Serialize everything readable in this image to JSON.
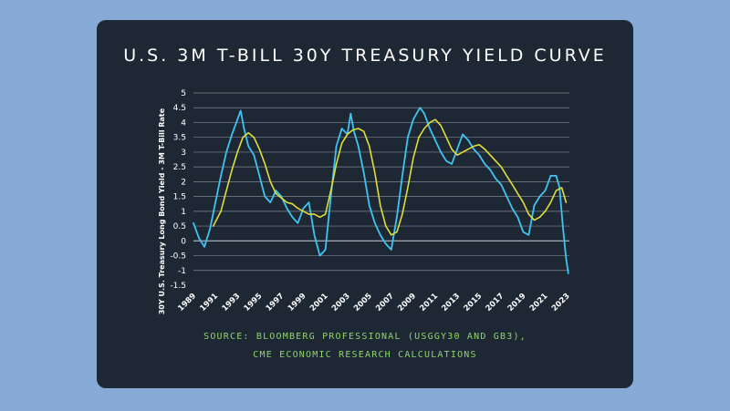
{
  "title": "U.S. 3M T-BILL 30Y TREASURY YIELD CURVE",
  "source_line1": "SOURCE: BLOOMBERG PROFESSIONAL (USGGY30 AND GB3),",
  "source_line2": "CME ECONOMIC RESEARCH CALCULATIONS",
  "chart_data": {
    "type": "line",
    "title": "U.S. 3M T-BILL 30Y TREASURY YIELD CURVE",
    "xlabel": "",
    "ylabel": "30Y U.S. Treasury Long Bond Yield - 3M T-Bill Rate",
    "xlim": [
      1989,
      2023.2
    ],
    "ylim": [
      -1.5,
      5
    ],
    "grid": true,
    "x_ticks": [
      "1989",
      "1991",
      "1993",
      "1995",
      "1997",
      "1999",
      "2001",
      "2003",
      "2005",
      "2007",
      "2009",
      "2011",
      "2013",
      "2015",
      "2017",
      "2019",
      "2021",
      "2023"
    ],
    "y_ticks": [
      "5",
      "4.5",
      "4",
      "3.5",
      "3",
      "2.5",
      "2",
      "1.5",
      "1",
      "0.5",
      "0",
      "-0.5",
      "-1",
      "-1.5"
    ],
    "colors": {
      "spread": "#3fc3f2",
      "moving_average": "#dede3a",
      "grid": "#d0d4da",
      "zero_line": "#c8ccd2"
    },
    "series": [
      {
        "name": "",
        "color": "#3fc3f2",
        "x": [
          1989.0,
          1989.5,
          1990.0,
          1990.5,
          1991.0,
          1991.5,
          1992.0,
          1992.5,
          1993.0,
          1993.3,
          1993.6,
          1994.0,
          1994.5,
          1995.0,
          1995.5,
          1996.0,
          1996.5,
          1997.0,
          1997.5,
          1998.0,
          1998.5,
          1999.0,
          1999.5,
          2000.0,
          2000.5,
          2001.0,
          2001.5,
          2002.0,
          2002.5,
          2003.0,
          2003.3,
          2003.6,
          2004.0,
          2004.5,
          2005.0,
          2005.5,
          2006.0,
          2006.5,
          2007.0,
          2007.5,
          2008.0,
          2008.5,
          2009.0,
          2009.3,
          2009.6,
          2010.0,
          2010.5,
          2011.0,
          2011.5,
          2012.0,
          2012.5,
          2013.0,
          2013.5,
          2014.0,
          2014.5,
          2015.0,
          2015.5,
          2016.0,
          2016.5,
          2017.0,
          2017.5,
          2018.0,
          2018.5,
          2019.0,
          2019.5,
          2020.0,
          2020.5,
          2021.0,
          2021.5,
          2022.0,
          2022.3,
          2022.6,
          2022.9,
          2023.1
        ],
        "y": [
          0.6,
          0.1,
          -0.2,
          0.4,
          1.3,
          2.2,
          3.0,
          3.6,
          4.1,
          4.4,
          3.8,
          3.2,
          2.9,
          2.2,
          1.5,
          1.3,
          1.7,
          1.5,
          1.1,
          0.8,
          0.6,
          1.1,
          1.3,
          0.2,
          -0.5,
          -0.3,
          1.5,
          3.2,
          3.8,
          3.6,
          4.3,
          3.7,
          3.2,
          2.3,
          1.2,
          0.6,
          0.2,
          -0.1,
          -0.3,
          0.8,
          2.2,
          3.5,
          4.1,
          4.3,
          4.5,
          4.3,
          3.8,
          3.4,
          3.0,
          2.7,
          2.6,
          3.1,
          3.6,
          3.4,
          3.1,
          2.9,
          2.6,
          2.4,
          2.1,
          1.9,
          1.5,
          1.1,
          0.8,
          0.3,
          0.2,
          1.2,
          1.5,
          1.7,
          2.2,
          2.2,
          1.8,
          0.5,
          -0.6,
          -1.1
        ]
      },
      {
        "name": "",
        "color": "#dede3a",
        "x": [
          1990.8,
          1991.5,
          1992.0,
          1992.5,
          1993.0,
          1993.5,
          1994.0,
          1994.5,
          1995.0,
          1995.5,
          1996.0,
          1996.5,
          1997.0,
          1997.5,
          1998.0,
          1998.5,
          1999.0,
          1999.5,
          2000.0,
          2000.5,
          2001.0,
          2001.5,
          2002.0,
          2002.5,
          2003.0,
          2003.5,
          2004.0,
          2004.5,
          2005.0,
          2005.5,
          2006.0,
          2006.5,
          2007.0,
          2007.5,
          2008.0,
          2008.5,
          2009.0,
          2009.5,
          2010.0,
          2010.5,
          2011.0,
          2011.5,
          2012.0,
          2012.5,
          2013.0,
          2013.5,
          2014.0,
          2014.5,
          2015.0,
          2015.5,
          2016.0,
          2016.5,
          2017.0,
          2017.5,
          2018.0,
          2018.5,
          2019.0,
          2019.5,
          2020.0,
          2020.5,
          2021.0,
          2021.5,
          2022.0,
          2022.5,
          2022.9
        ],
        "y": [
          0.5,
          1.0,
          1.7,
          2.4,
          3.0,
          3.5,
          3.65,
          3.5,
          3.1,
          2.6,
          2.0,
          1.6,
          1.45,
          1.3,
          1.25,
          1.1,
          1.0,
          0.9,
          0.9,
          0.8,
          0.9,
          1.7,
          2.6,
          3.3,
          3.6,
          3.75,
          3.8,
          3.7,
          3.2,
          2.3,
          1.2,
          0.5,
          0.2,
          0.3,
          0.9,
          1.8,
          2.8,
          3.5,
          3.8,
          4.0,
          4.1,
          3.9,
          3.5,
          3.1,
          2.9,
          3.0,
          3.1,
          3.2,
          3.25,
          3.1,
          2.9,
          2.7,
          2.5,
          2.2,
          1.9,
          1.6,
          1.3,
          0.9,
          0.7,
          0.8,
          1.0,
          1.3,
          1.7,
          1.8,
          1.3
        ]
      }
    ]
  }
}
